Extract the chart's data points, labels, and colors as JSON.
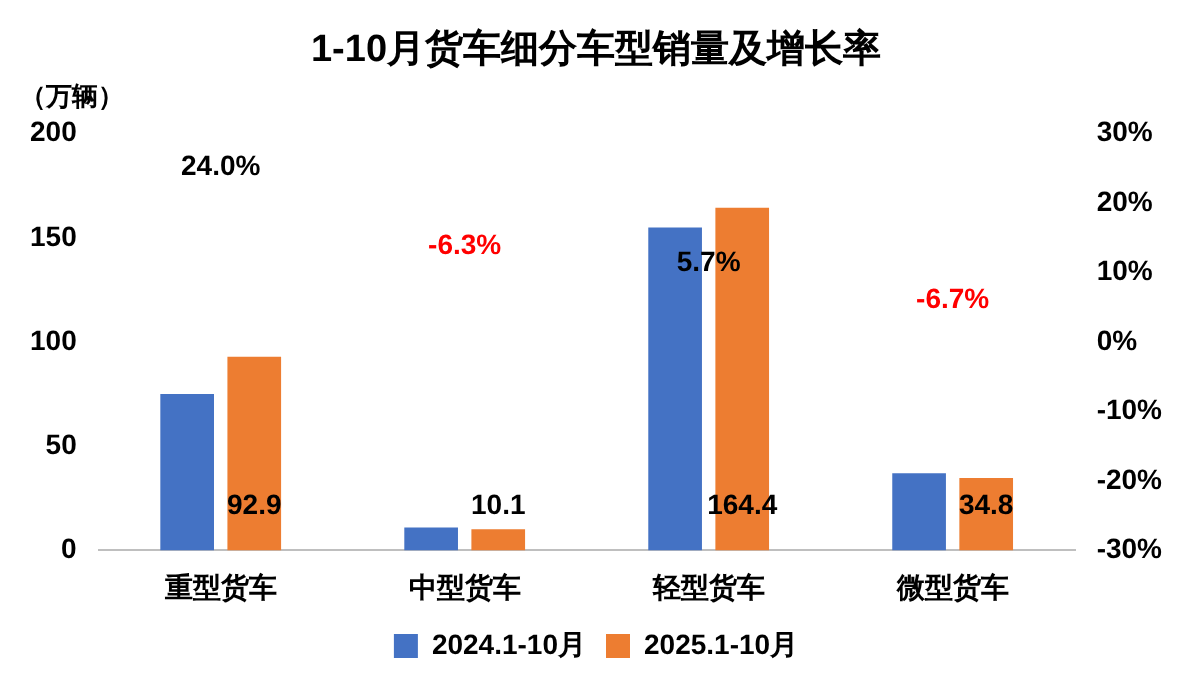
{
  "chart_data": {
    "type": "bar",
    "title": "1-10月货车细分车型销量及增长率",
    "ylabel": "（万辆）",
    "categories": [
      "重型货车",
      "中型货车",
      "轻型货车",
      "微型货车"
    ],
    "series": [
      {
        "name": "2024.1-10月",
        "color": "#4472c4",
        "values": [
          75,
          11,
          155,
          37
        ]
      },
      {
        "name": "2025.1-10月",
        "color": "#ed7d31",
        "values": [
          92.9,
          10.1,
          164.4,
          34.8
        ],
        "value_labels": [
          "92.9",
          "10.1",
          "164.4",
          "34.8"
        ]
      }
    ],
    "ylim": [
      0,
      200
    ],
    "yticks": [
      0,
      50,
      100,
      150,
      200
    ],
    "y2lim": [
      -30,
      30
    ],
    "y2ticks": [
      {
        "value": -30,
        "label": "-30%"
      },
      {
        "value": -20,
        "label": "-20%"
      },
      {
        "value": -10,
        "label": "-10%"
      },
      {
        "value": 0,
        "label": "0%"
      },
      {
        "value": 10,
        "label": "10%"
      },
      {
        "value": 20,
        "label": "20%"
      },
      {
        "value": 30,
        "label": "30%"
      }
    ],
    "annotations": [
      "24.0%",
      "-6.3%",
      "5.7%",
      "-6.7%"
    ],
    "grid": false,
    "legend": "bottom"
  }
}
